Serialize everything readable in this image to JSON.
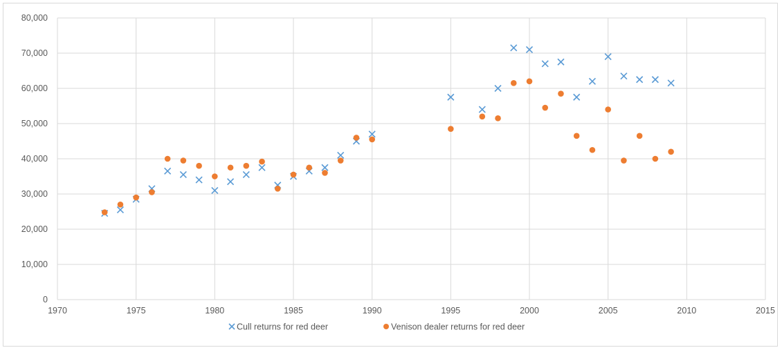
{
  "chart_data": {
    "type": "scatter",
    "title": "",
    "xlabel": "",
    "ylabel": "",
    "xlim": [
      1970,
      2015
    ],
    "ylim": [
      0,
      80000
    ],
    "x_ticks": [
      1970,
      1975,
      1980,
      1985,
      1990,
      1995,
      2000,
      2005,
      2010,
      2015
    ],
    "x_tick_labels": [
      "1970",
      "1975",
      "1980",
      "1985",
      "1990",
      "1995",
      "2000",
      "2005",
      "2010",
      "2015"
    ],
    "y_ticks": [
      0,
      10000,
      20000,
      30000,
      40000,
      50000,
      60000,
      70000,
      80000
    ],
    "y_tick_labels": [
      "0",
      "10,000",
      "20,000",
      "30,000",
      "40,000",
      "50,000",
      "60,000",
      "70,000",
      "80,000"
    ],
    "grid": true,
    "legend_position": "bottom",
    "series": [
      {
        "name": "Cull returns for red deer",
        "marker": "x",
        "color": "#5b9bd5",
        "x": [
          1973,
          1974,
          1975,
          1976,
          1977,
          1978,
          1979,
          1980,
          1981,
          1982,
          1983,
          1984,
          1985,
          1986,
          1987,
          1988,
          1989,
          1990,
          1995,
          1997,
          1998,
          1999,
          2000,
          2001,
          2002,
          2003,
          2004,
          2005,
          2006,
          2007,
          2008,
          2009
        ],
        "y": [
          24500,
          25500,
          28500,
          31500,
          36500,
          35500,
          34000,
          31000,
          33500,
          35500,
          37500,
          32500,
          35000,
          36500,
          37500,
          41000,
          45000,
          47000,
          57500,
          54000,
          60000,
          71500,
          71000,
          67000,
          67500,
          57500,
          62000,
          69000,
          63500,
          62500,
          62500,
          61500
        ]
      },
      {
        "name": "Venison dealer returns for red deer",
        "marker": "circle",
        "color": "#ed7d31",
        "x": [
          1973,
          1974,
          1975,
          1976,
          1977,
          1978,
          1979,
          1980,
          1981,
          1982,
          1983,
          1984,
          1985,
          1986,
          1987,
          1988,
          1989,
          1990,
          1995,
          1997,
          1998,
          1999,
          2000,
          2001,
          2002,
          2003,
          2004,
          2005,
          2006,
          2007,
          2008,
          2009
        ],
        "y": [
          24800,
          27000,
          29000,
          30500,
          40000,
          39500,
          38000,
          35000,
          37500,
          38000,
          39200,
          31500,
          35500,
          37500,
          36000,
          39500,
          46000,
          45500,
          48500,
          52000,
          51500,
          61500,
          62000,
          54500,
          58500,
          46500,
          42500,
          54000,
          39500,
          46500,
          40000,
          42000
        ]
      }
    ]
  }
}
